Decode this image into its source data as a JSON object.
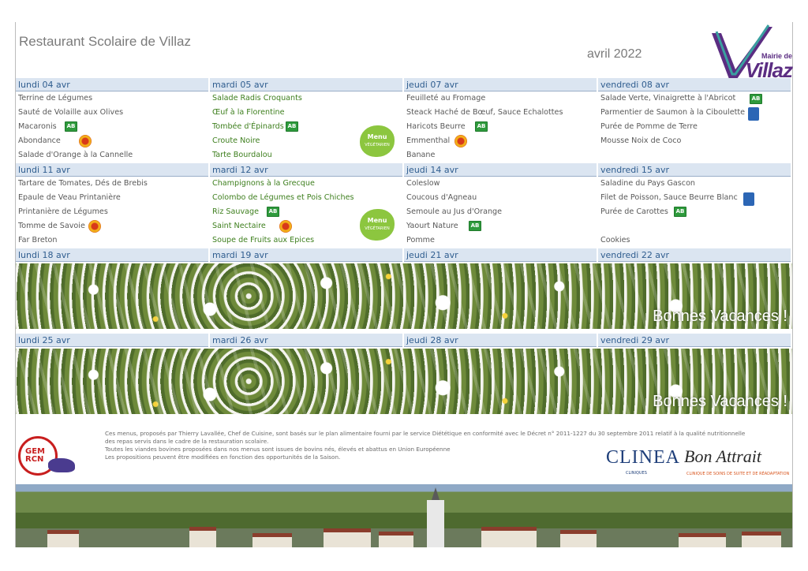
{
  "header": {
    "title": "Restaurant Scolaire de Villaz",
    "month": "avril 2022",
    "logo_small": "Mairie de",
    "logo_big": "Villaz"
  },
  "weeks": [
    {
      "days": [
        {
          "label": "lundi 04 avr",
          "dishes": [
            {
              "text": "Terrine de Légumes"
            },
            {
              "text": "Sauté de Volaille aux Olives"
            },
            {
              "text": "Macaronis",
              "badge": "ab"
            },
            {
              "text": "Abondance",
              "badge": "aop"
            },
            {
              "text": "Salade d'Orange à la Cannelle"
            }
          ]
        },
        {
          "label": "mardi 05 avr",
          "veg": true,
          "dishes": [
            {
              "text": "Salade Radis Croquants",
              "green": true
            },
            {
              "text": "Œuf à la Florentine",
              "green": true
            },
            {
              "text": "Tombée d'Épinards",
              "green": true,
              "badge": "ab"
            },
            {
              "text": "Croute Noire",
              "green": true
            },
            {
              "text": "Tarte Bourdalou",
              "green": true
            }
          ]
        },
        {
          "label": "jeudi 07 avr",
          "dishes": [
            {
              "text": "Feuilleté au Fromage"
            },
            {
              "text": "Steack Haché de Bœuf, Sauce Echalottes"
            },
            {
              "text": " Haricots Beurre",
              "badge": "ab"
            },
            {
              "text": "Emmenthal",
              "badge": "aop"
            },
            {
              "text": "Banane"
            }
          ]
        },
        {
          "label": "vendredi 08 avr",
          "dishes": [
            {
              "text": "Salade Verte, Vinaigrette à l'Abricot",
              "badge": "ab"
            },
            {
              "text": "Parmentier de Saumon à la Ciboulette",
              "badge": "fish"
            },
            {
              "text": "Purée de Pomme de Terre"
            },
            {
              "text": "Mousse Noix de Coco"
            },
            {
              "text": ""
            }
          ]
        }
      ]
    },
    {
      "days": [
        {
          "label": "lundi 11 avr",
          "dishes": [
            {
              "text": "Tartare de Tomates, Dés de Brebis"
            },
            {
              "text": "Epaule de Veau Printanière"
            },
            {
              "text": "Printanière de Légumes"
            },
            {
              "text": "Tomme de Savoie",
              "badge": "aop"
            },
            {
              "text": "Far Breton"
            }
          ]
        },
        {
          "label": "mardi 12 avr",
          "veg": true,
          "dishes": [
            {
              "text": "Champignons à la Grecque",
              "green": true
            },
            {
              "text": "Colombo de Légumes et Pois Chiches",
              "green": true
            },
            {
              "text": "Riz Sauvage",
              "green": true,
              "badge": "ab"
            },
            {
              "text": "Saint Nectaire",
              "green": true,
              "badge": "aop"
            },
            {
              "text": "Soupe de Fruits aux Epices",
              "green": true
            }
          ]
        },
        {
          "label": "jeudi 14 avr",
          "dishes": [
            {
              "text": "Coleslow"
            },
            {
              "text": "Coucous d'Agneau"
            },
            {
              "text": "Semoule au Jus d'Orange"
            },
            {
              "text": "Yaourt Nature",
              "badge": "ab"
            },
            {
              "text": "Pomme"
            }
          ]
        },
        {
          "label": "vendredi 15 avr",
          "dishes": [
            {
              "text": "Saladine du Pays Gascon"
            },
            {
              "text": "Filet de Poisson, Sauce Beurre Blanc",
              "badge": "fish"
            },
            {
              "text": "Purée de Carottes",
              "badge": "ab"
            },
            {
              "text": ""
            },
            {
              "text": "Cookies"
            }
          ]
        }
      ]
    }
  ],
  "holiday_weeks": [
    {
      "days": [
        "lundi 18 avr",
        "mardi 19 avr",
        "jeudi 21 avr",
        "vendredi 22 avr"
      ],
      "message": "Bonnes Vacances !"
    },
    {
      "days": [
        "lundi 25 avr",
        "mardi 26 avr",
        "jeudi 28 avr",
        "vendredi 29 avr"
      ],
      "message": "Bonnes Vacances !"
    }
  ],
  "badges": {
    "ab": "AB",
    "veg_title": "Menu",
    "veg_sub": "VÉGÉTARIEN"
  },
  "footer": {
    "gem_text_1": "GEM",
    "gem_text_2": "RCN",
    "legal": [
      "Ces menus, proposés par Thierry Lavallée, Chef de Cuisine, sont basés sur le plan alimentaire fourni par le service Diététique en conformité avec le Décret n° 2011-1227 du 30 septembre 2011 relatif à la qualité nutritionnelle",
      "des repas servis dans le cadre de la restauration scolaire.",
      "Toutes les viandes bovines proposées dans nos menus sont issues de bovins nés, élevés et abattus en Union Européenne",
      "Les propositions peuvent être modifiées en fonction des opportunités de la Saison."
    ],
    "clinea": "CLINEA",
    "clinea_sub": "CLINIQUES",
    "chateau": "Bon Attrait",
    "chateau_sub": "CLINIQUE DE SOINS DE SUITE ET DE RÉADAPTATION"
  },
  "colors": {
    "header_band": "#dbe5f1",
    "day_text": "#2f5d8f",
    "veg_text": "#3e7f1e",
    "dish_text": "#595959"
  }
}
